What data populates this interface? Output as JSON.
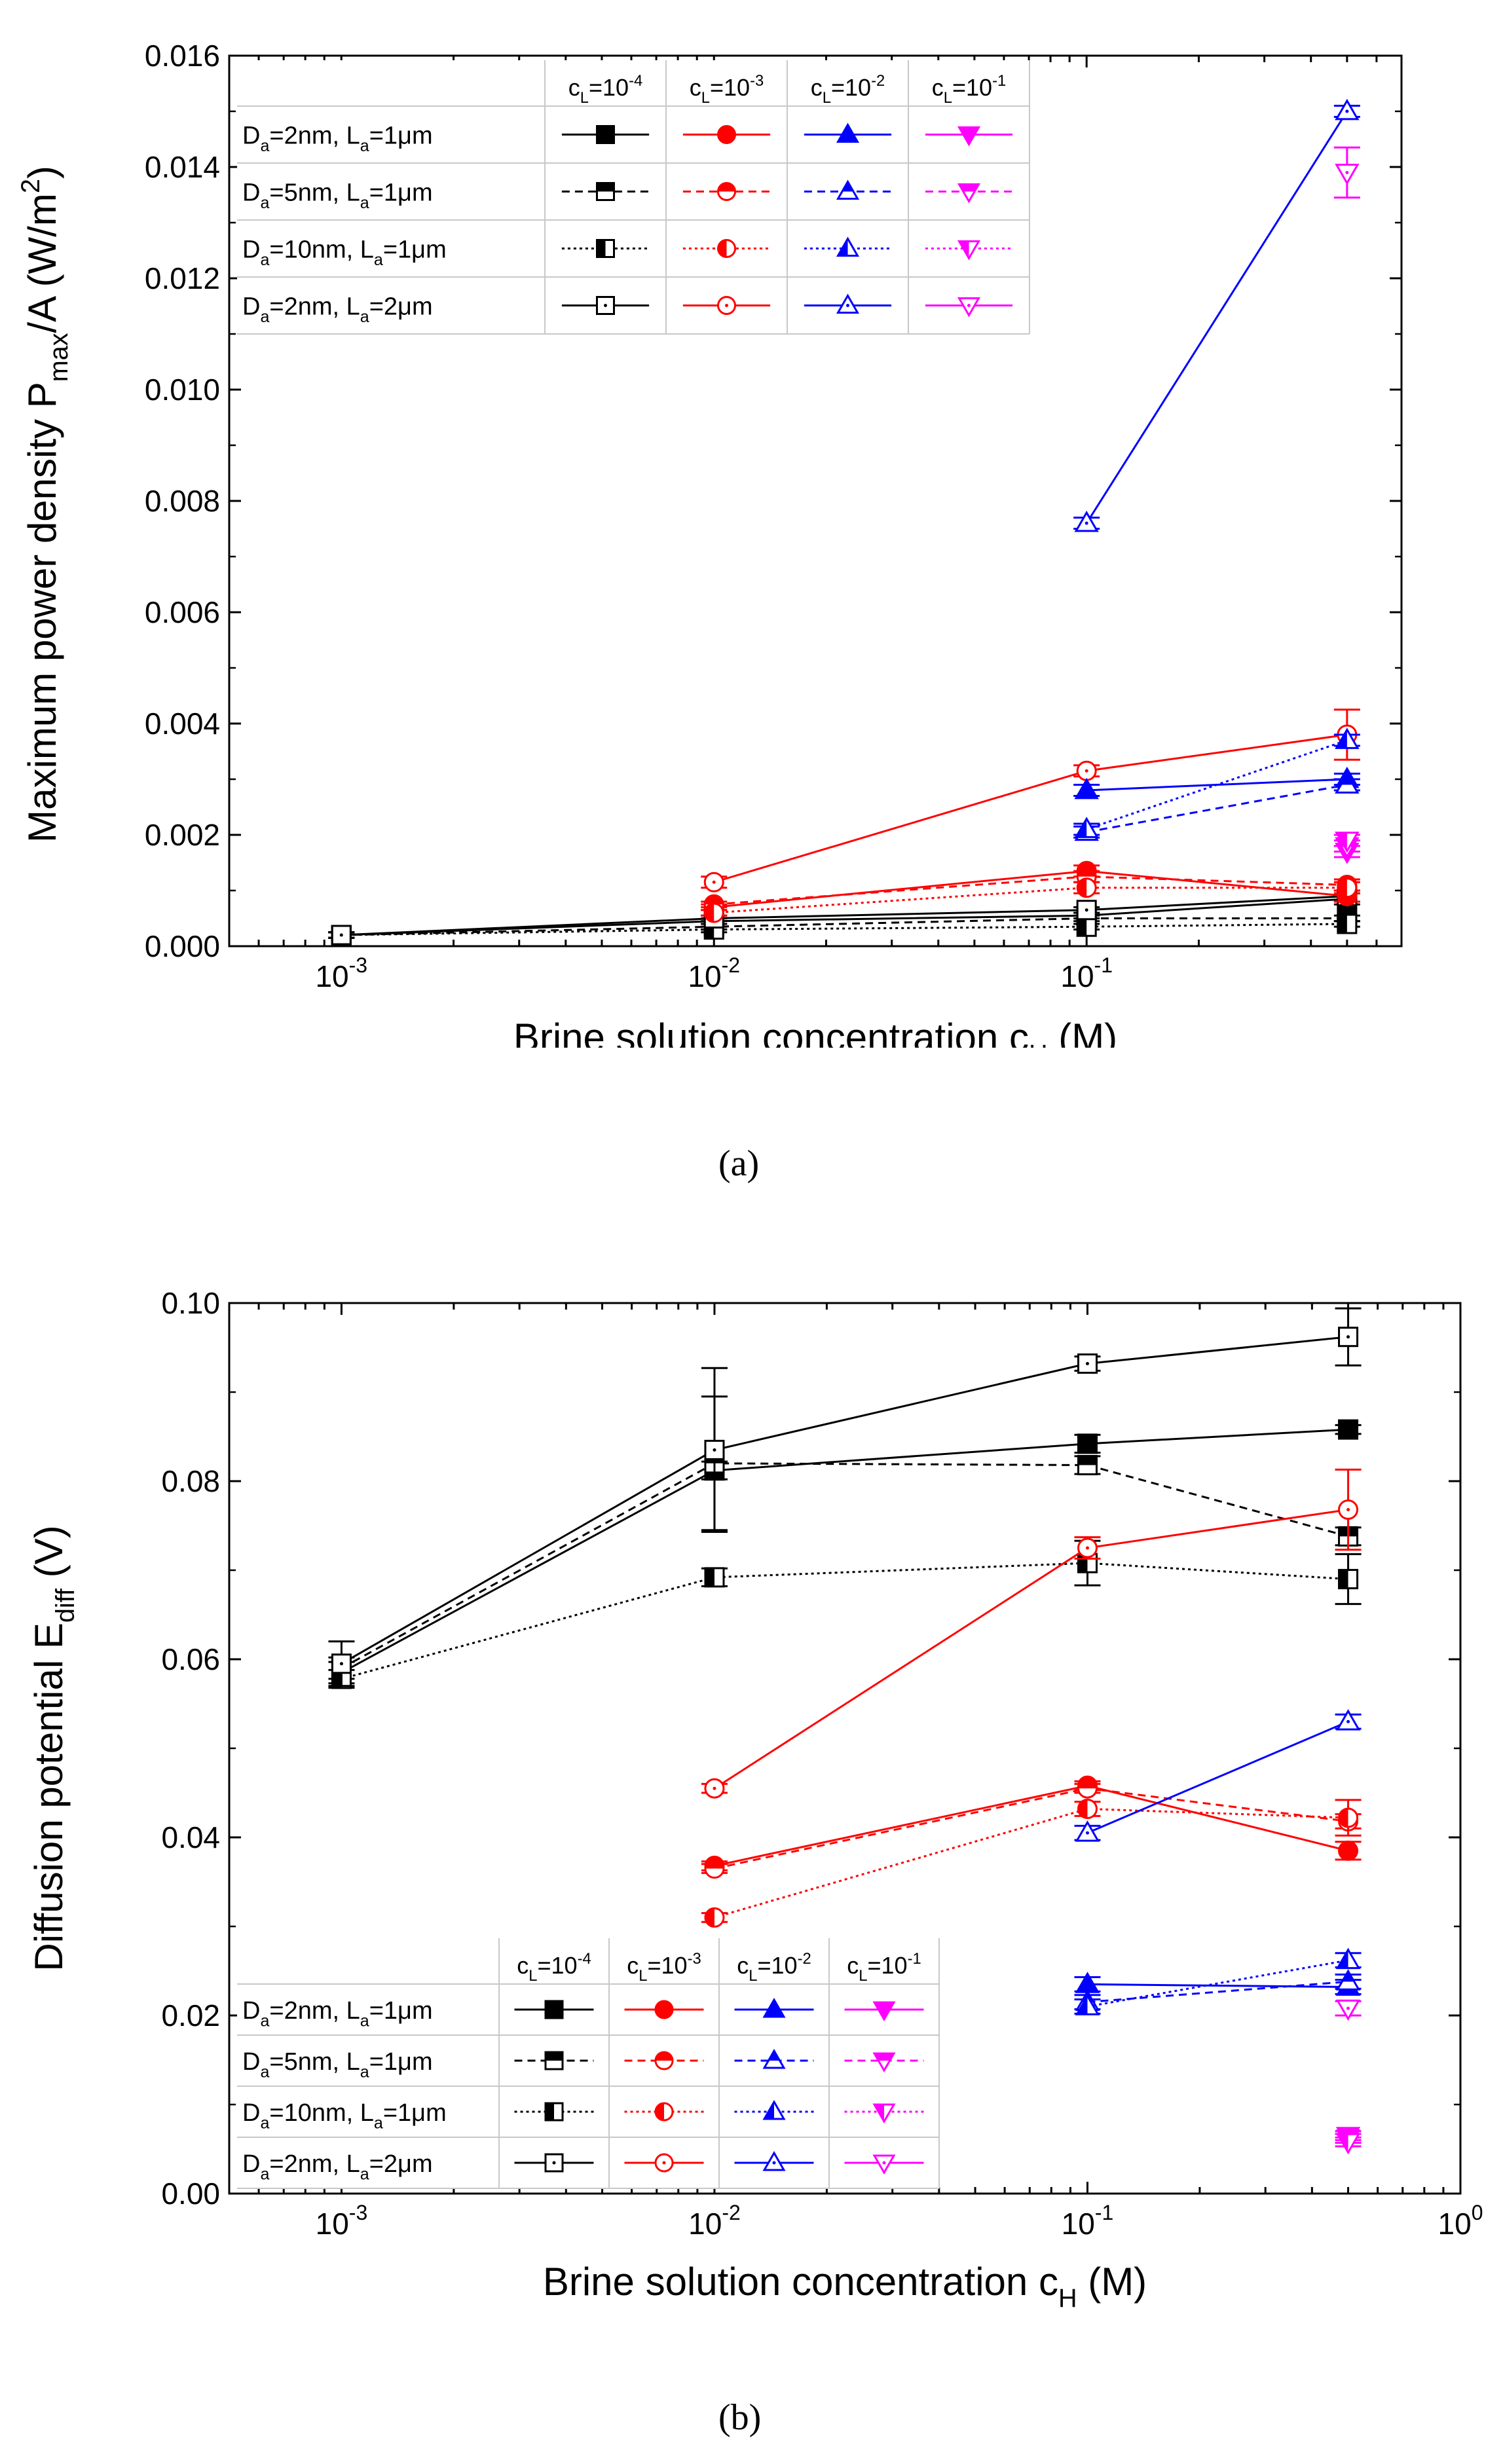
{
  "figure": {
    "caption_a": "(a)",
    "caption_b": "(b)"
  },
  "chart_data": [
    {
      "type": "line",
      "panel": "a",
      "title": "",
      "xlabel": "Brine solution concentration c_H (M)",
      "ylabel": "Maximum power density P_max/A (W/m^2)",
      "x_scale": "log",
      "xlim": [
        0.0005,
        0.7
      ],
      "ylim": [
        0,
        0.016
      ],
      "x_ticks": [
        {
          "value": 0.001,
          "label": "10",
          "exp": "-3"
        },
        {
          "value": 0.01,
          "label": "10",
          "exp": "-2"
        },
        {
          "value": 0.1,
          "label": "10",
          "exp": "-1"
        }
      ],
      "y_ticks": [
        {
          "value": 0,
          "label": "0.000"
        },
        {
          "value": 0.002,
          "label": "0.002"
        },
        {
          "value": 0.004,
          "label": "0.004"
        },
        {
          "value": 0.006,
          "label": "0.006"
        },
        {
          "value": 0.008,
          "label": "0.008"
        },
        {
          "value": 0.01,
          "label": "0.010"
        },
        {
          "value": 0.012,
          "label": "0.012"
        },
        {
          "value": 0.014,
          "label": "0.014"
        },
        {
          "value": 0.016,
          "label": "0.016"
        }
      ],
      "legend": {
        "placement": "top-left",
        "columns": [
          "c_L=10^-4",
          "c_L=10^-3",
          "c_L=10^-2",
          "c_L=10^-1"
        ],
        "rows": [
          "D_a=2nm, L_a=1μm",
          "D_a=5nm, L_a=1μm",
          "D_a=10nm, L_a=1μm",
          "D_a=2nm, L_a=2μm"
        ]
      },
      "series": [
        {
          "name": "c_L=10^-4, D_a=2nm, L_a=1μm",
          "color": "#000000",
          "marker": "square",
          "fill": "full",
          "dash": "solid",
          "x": [
            0.001,
            0.01,
            0.1,
            0.5
          ],
          "y": [
            0.0002,
            0.00045,
            0.00055,
            0.00085
          ],
          "err": [
            5e-05,
            5e-05,
            5e-05,
            0.0001
          ]
        },
        {
          "name": "c_L=10^-4, D_a=5nm, L_a=1μm",
          "color": "#000000",
          "marker": "square",
          "fill": "top",
          "dash": "dash",
          "x": [
            0.001,
            0.01,
            0.1,
            0.5
          ],
          "y": [
            0.0002,
            0.00035,
            0.0005,
            0.0005
          ],
          "err": [
            5e-05,
            5e-05,
            5e-05,
            5e-05
          ]
        },
        {
          "name": "c_L=10^-4, D_a=10nm, L_a=1μm",
          "color": "#000000",
          "marker": "square",
          "fill": "left",
          "dash": "dot",
          "x": [
            0.001,
            0.01,
            0.1,
            0.5
          ],
          "y": [
            0.0002,
            0.0003,
            0.00035,
            0.0004
          ],
          "err": [
            5e-05,
            5e-05,
            5e-05,
            5e-05
          ]
        },
        {
          "name": "c_L=10^-4, D_a=2nm, L_a=2μm",
          "color": "#000000",
          "marker": "square",
          "fill": "dot",
          "dash": "solid",
          "x": [
            0.001,
            0.01,
            0.1,
            0.5
          ],
          "y": [
            0.0002,
            0.0005,
            0.00065,
            0.0009
          ],
          "err": [
            5e-05,
            5e-05,
            5e-05,
            0.0001
          ]
        },
        {
          "name": "c_L=10^-3, D_a=2nm, L_a=1μm",
          "color": "#ff0000",
          "marker": "circle",
          "fill": "full",
          "dash": "solid",
          "x": [
            0.01,
            0.1,
            0.5
          ],
          "y": [
            0.0007,
            0.00135,
            0.0009
          ],
          "err": [
            5e-05,
            0.0001,
            0.0001
          ]
        },
        {
          "name": "c_L=10^-3, D_a=5nm, L_a=1μm",
          "color": "#ff0000",
          "marker": "circle",
          "fill": "top",
          "dash": "dash",
          "x": [
            0.01,
            0.1,
            0.5
          ],
          "y": [
            0.00075,
            0.00125,
            0.0011
          ],
          "err": [
            5e-05,
            0.0001,
            0.0001
          ]
        },
        {
          "name": "c_L=10^-3, D_a=10nm, L_a=1μm",
          "color": "#ff0000",
          "marker": "circle",
          "fill": "left",
          "dash": "dot",
          "x": [
            0.01,
            0.1,
            0.5
          ],
          "y": [
            0.0006,
            0.00105,
            0.00105
          ],
          "err": [
            5e-05,
            0.0001,
            0.0001
          ]
        },
        {
          "name": "c_L=10^-3, D_a=2nm, L_a=2μm",
          "color": "#ff0000",
          "marker": "circle",
          "fill": "dot",
          "dash": "solid",
          "x": [
            0.01,
            0.1,
            0.5
          ],
          "y": [
            0.00115,
            0.00315,
            0.0038
          ],
          "err": [
            0.0001,
            0.0001,
            0.00045
          ]
        },
        {
          "name": "c_L=10^-2, D_a=2nm, L_a=1μm",
          "color": "#0000ff",
          "marker": "triangle-up",
          "fill": "full",
          "dash": "solid",
          "x": [
            0.1,
            0.5
          ],
          "y": [
            0.0028,
            0.003
          ],
          "err": [
            0.0001,
            0.0001
          ]
        },
        {
          "name": "c_L=10^-2, D_a=5nm, L_a=1μm",
          "color": "#0000ff",
          "marker": "triangle-up",
          "fill": "top",
          "dash": "dash",
          "x": [
            0.1,
            0.5
          ],
          "y": [
            0.00205,
            0.0029
          ],
          "err": [
            0.0001,
            0.0001
          ]
        },
        {
          "name": "c_L=10^-2, D_a=10nm, L_a=1μm",
          "color": "#0000ff",
          "marker": "triangle-up",
          "fill": "left",
          "dash": "dot",
          "x": [
            0.1,
            0.5
          ],
          "y": [
            0.0021,
            0.0037
          ],
          "err": [
            0.0001,
            0.0001
          ]
        },
        {
          "name": "c_L=10^-2, D_a=2nm, L_a=2μm",
          "color": "#0000ff",
          "marker": "triangle-up",
          "fill": "dot",
          "dash": "solid",
          "x": [
            0.1,
            0.5
          ],
          "y": [
            0.0076,
            0.015
          ],
          "err": [
            0.0001,
            0.0001
          ]
        },
        {
          "name": "c_L=10^-1, D_a=2nm, L_a=1μm",
          "color": "#ff00ff",
          "marker": "triangle-down",
          "fill": "full",
          "dash": "solid",
          "x": [
            0.5
          ],
          "y": [
            0.0017
          ],
          "err": [
            0.0001
          ]
        },
        {
          "name": "c_L=10^-1, D_a=5nm, L_a=1μm",
          "color": "#ff00ff",
          "marker": "triangle-down",
          "fill": "top",
          "dash": "dash",
          "x": [
            0.5
          ],
          "y": [
            0.0018
          ],
          "err": [
            0.0001
          ]
        },
        {
          "name": "c_L=10^-1, D_a=10nm, L_a=1μm",
          "color": "#ff00ff",
          "marker": "triangle-down",
          "fill": "left",
          "dash": "dot",
          "x": [
            0.5
          ],
          "y": [
            0.0019
          ],
          "err": [
            0.0001
          ]
        },
        {
          "name": "c_L=10^-1, D_a=2nm, L_a=2μm",
          "color": "#ff00ff",
          "marker": "triangle-down",
          "fill": "dot",
          "dash": "solid",
          "x": [
            0.5
          ],
          "y": [
            0.0139
          ],
          "err": [
            0.00045
          ]
        }
      ]
    },
    {
      "type": "line",
      "panel": "b",
      "title": "",
      "xlabel": "Brine solution concentration c_H (M)",
      "ylabel": "Diffusion potential E_diff (V)",
      "x_scale": "log",
      "xlim": [
        0.0005,
        1
      ],
      "ylim": [
        0,
        0.1
      ],
      "x_ticks": [
        {
          "value": 0.001,
          "label": "10",
          "exp": "-3"
        },
        {
          "value": 0.01,
          "label": "10",
          "exp": "-2"
        },
        {
          "value": 0.1,
          "label": "10",
          "exp": "-1"
        },
        {
          "value": 1,
          "label": "10",
          "exp": "0"
        }
      ],
      "y_ticks": [
        {
          "value": 0,
          "label": "0.00"
        },
        {
          "value": 0.02,
          "label": "0.02"
        },
        {
          "value": 0.04,
          "label": "0.04"
        },
        {
          "value": 0.06,
          "label": "0.06"
        },
        {
          "value": 0.08,
          "label": "0.08"
        },
        {
          "value": 0.1,
          "label": "0.10"
        }
      ],
      "legend": {
        "placement": "bottom-left",
        "columns": [
          "c_L=10^-4",
          "c_L=10^-3",
          "c_L=10^-2",
          "c_L=10^-1"
        ],
        "rows": [
          "D_a=2nm, L_a=1μm",
          "D_a=5nm, L_a=1μm",
          "D_a=10nm, L_a=1μm",
          "D_a=2nm, L_a=2μm"
        ]
      },
      "series": [
        {
          "name": "c_L=10^-4, D_a=2nm, L_a=1μm",
          "color": "#000000",
          "marker": "square",
          "fill": "full",
          "dash": "solid",
          "x": [
            0.001,
            0.01,
            0.1,
            0.5
          ],
          "y": [
            0.0585,
            0.0812,
            0.0842,
            0.0858
          ],
          "err": [
            0.0012,
            0.001,
            0.001,
            0.0005
          ]
        },
        {
          "name": "c_L=10^-4, D_a=5nm, L_a=1μm",
          "color": "#000000",
          "marker": "square",
          "fill": "top",
          "dash": "dash",
          "x": [
            0.001,
            0.01,
            0.1,
            0.5
          ],
          "y": [
            0.059,
            0.082,
            0.0818,
            0.0738
          ],
          "err": [
            0.0012,
            0.0075,
            0.001,
            0.001
          ]
        },
        {
          "name": "c_L=10^-4, D_a=10nm, L_a=1μm",
          "color": "#000000",
          "marker": "square",
          "fill": "left",
          "dash": "dot",
          "x": [
            0.001,
            0.01,
            0.1,
            0.5
          ],
          "y": [
            0.0578,
            0.0692,
            0.0708,
            0.069
          ],
          "err": [
            0.001,
            0.001,
            0.0025,
            0.0028
          ]
        },
        {
          "name": "c_L=10^-4, D_a=2nm, L_a=2μm",
          "color": "#000000",
          "marker": "square",
          "fill": "dot",
          "dash": "solid",
          "x": [
            0.001,
            0.01,
            0.1,
            0.5
          ],
          "y": [
            0.0595,
            0.0835,
            0.0932,
            0.0962
          ],
          "err": [
            0.0025,
            0.0092,
            0.0008,
            0.0032
          ]
        },
        {
          "name": "c_L=10^-3, D_a=2nm, L_a=1μm",
          "color": "#ff0000",
          "marker": "circle",
          "fill": "full",
          "dash": "solid",
          "x": [
            0.01,
            0.1,
            0.5
          ],
          "y": [
            0.0368,
            0.0458,
            0.0385
          ],
          "err": [
            0.0005,
            0.0005,
            0.001
          ]
        },
        {
          "name": "c_L=10^-3, D_a=5nm, L_a=1μm",
          "color": "#ff0000",
          "marker": "circle",
          "fill": "top",
          "dash": "dash",
          "x": [
            0.01,
            0.1,
            0.5
          ],
          "y": [
            0.0365,
            0.0455,
            0.0418
          ],
          "err": [
            0.0005,
            0.0005,
            0.0008
          ]
        },
        {
          "name": "c_L=10^-3, D_a=10nm, L_a=1μm",
          "color": "#ff0000",
          "marker": "circle",
          "fill": "left",
          "dash": "dot",
          "x": [
            0.01,
            0.1,
            0.5
          ],
          "y": [
            0.031,
            0.0432,
            0.0422
          ],
          "err": [
            0.0005,
            0.0008,
            0.002
          ]
        },
        {
          "name": "c_L=10^-3, D_a=2nm, L_a=2μm",
          "color": "#ff0000",
          "marker": "circle",
          "fill": "dot",
          "dash": "solid",
          "x": [
            0.01,
            0.1,
            0.5
          ],
          "y": [
            0.0455,
            0.0725,
            0.0768
          ],
          "err": [
            0.0005,
            0.0012,
            0.0045
          ]
        },
        {
          "name": "c_L=10^-2, D_a=2nm, L_a=1μm",
          "color": "#0000ff",
          "marker": "triangle-up",
          "fill": "full",
          "dash": "solid",
          "x": [
            0.1,
            0.5
          ],
          "y": [
            0.0235,
            0.0232
          ],
          "err": [
            0.0008,
            0.0008
          ]
        },
        {
          "name": "c_L=10^-2, D_a=5nm, L_a=1μm",
          "color": "#0000ff",
          "marker": "triangle-up",
          "fill": "top",
          "dash": "dash",
          "x": [
            0.1,
            0.5
          ],
          "y": [
            0.0215,
            0.0238
          ],
          "err": [
            0.0008,
            0.0008
          ]
        },
        {
          "name": "c_L=10^-2, D_a=10nm, L_a=1μm",
          "color": "#0000ff",
          "marker": "triangle-up",
          "fill": "left",
          "dash": "dot",
          "x": [
            0.1,
            0.5
          ],
          "y": [
            0.021,
            0.0262
          ],
          "err": [
            0.0008,
            0.0008
          ]
        },
        {
          "name": "c_L=10^-2, D_a=2nm, L_a=2μm",
          "color": "#0000ff",
          "marker": "triangle-up",
          "fill": "dot",
          "dash": "solid",
          "x": [
            0.1,
            0.5
          ],
          "y": [
            0.0405,
            0.053
          ],
          "err": [
            0.0008,
            0.0008
          ]
        },
        {
          "name": "c_L=10^-1, D_a=2nm, L_a=1μm",
          "color": "#ff00ff",
          "marker": "triangle-down",
          "fill": "full",
          "dash": "solid",
          "x": [
            0.5
          ],
          "y": [
            0.0065
          ],
          "err": [
            0.0005
          ]
        },
        {
          "name": "c_L=10^-1, D_a=5nm, L_a=1μm",
          "color": "#ff00ff",
          "marker": "triangle-down",
          "fill": "top",
          "dash": "dash",
          "x": [
            0.5
          ],
          "y": [
            0.0062
          ],
          "err": [
            0.0005
          ]
        },
        {
          "name": "c_L=10^-1, D_a=10nm, L_a=1μm",
          "color": "#ff00ff",
          "marker": "triangle-down",
          "fill": "left",
          "dash": "dot",
          "x": [
            0.5
          ],
          "y": [
            0.0058
          ],
          "err": [
            0.0005
          ]
        },
        {
          "name": "c_L=10^-1, D_a=2nm, L_a=2μm",
          "color": "#ff00ff",
          "marker": "triangle-down",
          "fill": "dot",
          "dash": "solid",
          "x": [
            0.5
          ],
          "y": [
            0.0208
          ],
          "err": [
            0.0008
          ]
        }
      ]
    }
  ]
}
